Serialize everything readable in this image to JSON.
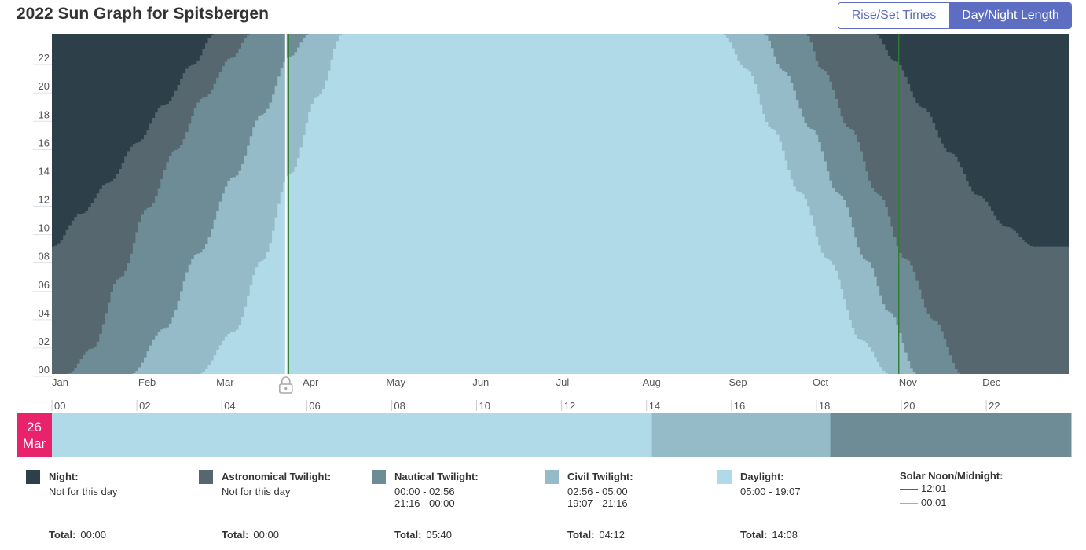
{
  "title": "2022 Sun Graph for Spitsbergen",
  "toggle": {
    "rise_set": "Rise/Set Times",
    "day_night": "Day/Night Length",
    "active": "Day/Night Length"
  },
  "colors": {
    "night": "#2d4049",
    "astronomical": "#56676f",
    "nautical": "#6e8c96",
    "civil": "#95bac8",
    "daylight": "#b0dae7",
    "marker": "#ffffff",
    "dst": "#2e7d32",
    "date_badge": "#e8226b",
    "noon_line": "#d32f2f",
    "midnight_line": "#d4b21a"
  },
  "chart_data": {
    "type": "area",
    "x_label": "",
    "y_label": "",
    "y_ticks": [
      "00",
      "02",
      "04",
      "06",
      "08",
      "10",
      "12",
      "14",
      "16",
      "18",
      "20",
      "22"
    ],
    "ylim": [
      0,
      24
    ],
    "months": [
      "Jan",
      "Feb",
      "Mar",
      "Apr",
      "May",
      "Jun",
      "Jul",
      "Aug",
      "Sep",
      "Oct",
      "Nov",
      "Dec"
    ],
    "hours_daylight_by_day": [
      [
        0,
        0.0
      ],
      [
        14,
        0.0
      ],
      [
        28,
        0.0
      ],
      [
        40,
        0.0
      ],
      [
        52,
        0.0
      ],
      [
        65,
        3.0
      ],
      [
        75,
        8.0
      ],
      [
        85,
        14.1
      ],
      [
        95,
        19.6
      ],
      [
        104,
        24.0
      ],
      [
        240,
        24.0
      ],
      [
        249,
        21.5
      ],
      [
        258,
        17.3
      ],
      [
        268,
        12.8
      ],
      [
        278,
        8.1
      ],
      [
        290,
        2.4
      ],
      [
        300,
        0.0
      ],
      [
        364,
        0.0
      ]
    ],
    "hours_civil_by_day": [
      [
        0,
        0.0
      ],
      [
        14,
        0.0
      ],
      [
        28,
        0.0
      ],
      [
        40,
        3.2
      ],
      [
        52,
        8.5
      ],
      [
        65,
        13.9
      ],
      [
        75,
        18.3
      ],
      [
        85,
        22.4
      ],
      [
        92,
        24.0
      ],
      [
        255,
        24.0
      ],
      [
        262,
        21.4
      ],
      [
        272,
        17.3
      ],
      [
        282,
        12.7
      ],
      [
        292,
        8.0
      ],
      [
        300,
        4.4
      ],
      [
        310,
        0.0
      ],
      [
        364,
        0.0
      ]
    ],
    "hours_nautical_by_day": [
      [
        0,
        0.0
      ],
      [
        5,
        0.0
      ],
      [
        14,
        1.8
      ],
      [
        24,
        6.8
      ],
      [
        34,
        11.7
      ],
      [
        44,
        15.8
      ],
      [
        54,
        19.5
      ],
      [
        64,
        22.3
      ],
      [
        71,
        24.0
      ],
      [
        270,
        24.0
      ],
      [
        276,
        21.5
      ],
      [
        286,
        17.3
      ],
      [
        296,
        12.7
      ],
      [
        306,
        8.1
      ],
      [
        316,
        3.8
      ],
      [
        326,
        0.0
      ],
      [
        364,
        0.0
      ]
    ],
    "hours_astronomical_by_day": [
      [
        0,
        9.0
      ],
      [
        10,
        11.3
      ],
      [
        20,
        13.5
      ],
      [
        30,
        16.3
      ],
      [
        40,
        19.0
      ],
      [
        50,
        21.8
      ],
      [
        58,
        24.0
      ],
      [
        295,
        24.0
      ],
      [
        302,
        22.1
      ],
      [
        312,
        18.8
      ],
      [
        322,
        15.6
      ],
      [
        332,
        12.6
      ],
      [
        342,
        10.4
      ],
      [
        352,
        9.0
      ],
      [
        364,
        9.0
      ]
    ],
    "selected_day_of_year": 84,
    "dst_change_days": [
      85,
      304
    ]
  },
  "day_axis": {
    "hour_ticks": [
      "00",
      "02",
      "04",
      "06",
      "08",
      "10",
      "12",
      "14",
      "16",
      "18",
      "20",
      "22"
    ],
    "selected_date": {
      "day": "26",
      "month": "Mar"
    },
    "segments": [
      {
        "from": 0,
        "to": 14.13,
        "kind": "daylight"
      },
      {
        "from": 14.13,
        "to": 18.33,
        "kind": "civil"
      },
      {
        "from": 18.33,
        "to": 24,
        "kind": "nautical"
      }
    ]
  },
  "legend": [
    {
      "key": "night",
      "label": "Night:",
      "lines": [
        "Not for this day"
      ],
      "total_label": "Total:",
      "total": "00:00"
    },
    {
      "key": "astronomical",
      "label": "Astronomical Twilight:",
      "lines": [
        "Not for this day"
      ],
      "total_label": "Total:",
      "total": "00:00"
    },
    {
      "key": "nautical",
      "label": "Nautical Twilight:",
      "lines": [
        "00:00 - 02:56",
        "21:16 - 00:00"
      ],
      "total_label": "Total:",
      "total": "05:40"
    },
    {
      "key": "civil",
      "label": "Civil Twilight:",
      "lines": [
        "02:56 - 05:00",
        "19:07 - 21:16"
      ],
      "total_label": "Total:",
      "total": "04:12"
    },
    {
      "key": "daylight",
      "label": "Daylight:",
      "lines": [
        "05:00 - 19:07"
      ],
      "total_label": "Total:",
      "total": "14:08"
    }
  ],
  "solar": {
    "label": "Solar Noon/Midnight:",
    "noon": "12:01",
    "midnight": "00:01"
  }
}
